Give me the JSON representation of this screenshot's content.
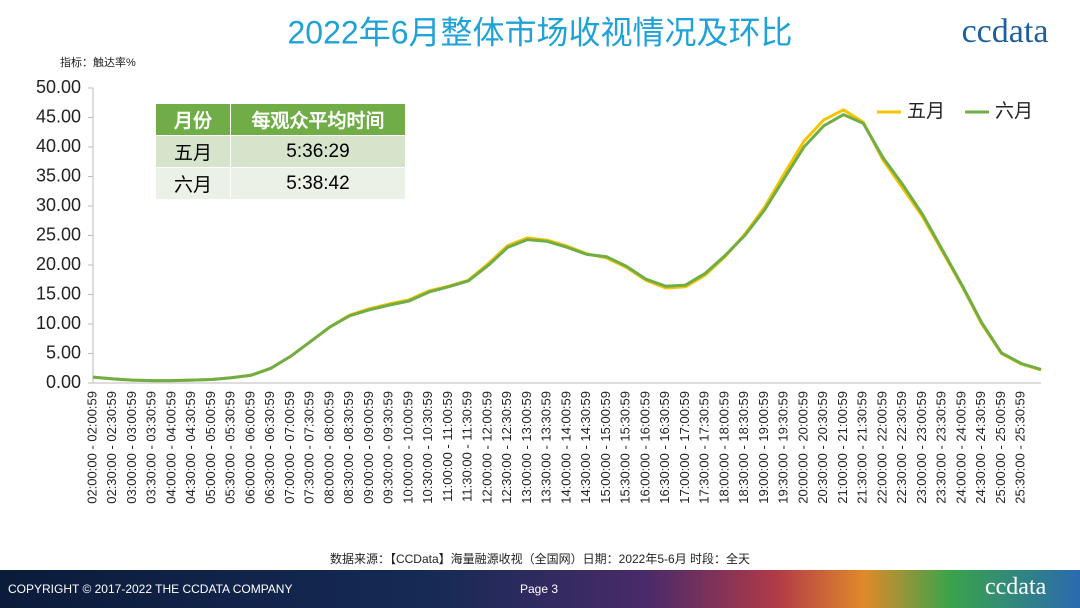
{
  "header": {
    "logo": "ccdata"
  },
  "chart_data": {
    "type": "line",
    "title": "2022年6月整体市场收视情况及环比",
    "y_label": "指标：触达率%",
    "categories": [
      "02:00:00 - 02:00:59",
      "02:30:00 - 02:30:59",
      "03:00:00 - 03:00:59",
      "03:30:00 - 03:30:59",
      "04:00:00 - 04:00:59",
      "04:30:00 - 04:30:59",
      "05:00:00 - 05:00:59",
      "05:30:00 - 05:30:59",
      "06:00:00 - 06:00:59",
      "06:30:00 - 06:30:59",
      "07:00:00 - 07:00:59",
      "07:30:00 - 07:30:59",
      "08:00:00 - 08:00:59",
      "08:30:00 - 08:30:59",
      "09:00:00 - 09:00:59",
      "09:30:00 - 09:30:59",
      "10:00:00 - 10:00:59",
      "10:30:00 - 10:30:59",
      "11:00:00 - 11:00:59",
      "11:30:00 - 11:30:59",
      "12:00:00 - 12:00:59",
      "12:30:00 - 12:30:59",
      "13:00:00 - 13:00:59",
      "13:30:00 - 13:30:59",
      "14:00:00 - 14:00:59",
      "14:30:00 - 14:30:59",
      "15:00:00 - 15:00:59",
      "15:30:00 - 15:30:59",
      "16:00:00 - 16:00:59",
      "16:30:00 - 16:30:59",
      "17:00:00 - 17:00:59",
      "17:30:00 - 17:30:59",
      "18:00:00 - 18:00:59",
      "18:30:00 - 18:30:59",
      "19:00:00 - 19:00:59",
      "19:30:00 - 19:30:59",
      "20:00:00 - 20:00:59",
      "20:30:00 - 20:30:59",
      "21:00:00 - 21:00:59",
      "21:30:00 - 21:30:59",
      "22:00:00 - 22:00:59",
      "22:30:00 - 22:30:59",
      "23:00:00 - 23:00:59",
      "23:30:00 - 23:30:59",
      "24:00:00 - 24:00:59",
      "24:30:00 - 24:30:59",
      "25:00:00 - 25:00:59",
      "25:30:00 - 25:30:59",
      null
    ],
    "series": [
      {
        "name": "五月",
        "color": "#f5c400",
        "values": [
          1.0,
          0.7,
          0.5,
          0.4,
          0.4,
          0.5,
          0.6,
          0.9,
          1.3,
          2.5,
          4.5,
          7.0,
          9.5,
          11.5,
          12.6,
          13.4,
          14.1,
          15.6,
          16.4,
          17.4,
          20.2,
          23.3,
          24.6,
          24.2,
          23.2,
          21.9,
          21.2,
          19.6,
          17.4,
          16.1,
          16.3,
          18.3,
          21.4,
          25.2,
          29.8,
          35.5,
          41.0,
          44.6,
          46.3,
          44.2,
          37.8,
          33.0,
          28.2,
          22.3,
          16.4,
          10.0,
          5.0,
          3.2,
          2.2
        ]
      },
      {
        "name": "六月",
        "color": "#70ad47",
        "values": [
          1.0,
          0.7,
          0.5,
          0.4,
          0.4,
          0.5,
          0.6,
          0.9,
          1.3,
          2.5,
          4.5,
          7.0,
          9.5,
          11.4,
          12.4,
          13.2,
          13.9,
          15.4,
          16.3,
          17.3,
          19.9,
          23.0,
          24.3,
          24.0,
          23.0,
          21.8,
          21.4,
          19.8,
          17.6,
          16.4,
          16.6,
          18.6,
          21.6,
          25.0,
          29.3,
          34.7,
          40.0,
          43.6,
          45.5,
          44.0,
          38.2,
          33.6,
          28.6,
          22.6,
          16.6,
          10.2,
          5.1,
          3.3,
          2.3
        ]
      }
    ],
    "ylim": [
      0,
      50
    ],
    "yticks": [
      {
        "value": 0,
        "label": "0.00"
      },
      {
        "value": 5,
        "label": "5.00"
      },
      {
        "value": 10,
        "label": "10.00"
      },
      {
        "value": 15,
        "label": "15.00"
      },
      {
        "value": 20,
        "label": "20.00"
      },
      {
        "value": 25,
        "label": "25.00"
      },
      {
        "value": 30,
        "label": "30.00"
      },
      {
        "value": 35,
        "label": "35.00"
      },
      {
        "value": 40,
        "label": "40.00"
      },
      {
        "value": 45,
        "label": "45.00"
      },
      {
        "value": 50,
        "label": "50.00"
      }
    ],
    "legend": "top-right"
  },
  "table": {
    "headers": [
      "月份",
      "每观众平均时间"
    ],
    "rows": [
      [
        "五月",
        "5:36:29"
      ],
      [
        "六月",
        "5:38:42"
      ]
    ]
  },
  "source": "数据来源：【CCData】海量融源收视（全国网）日期：2022年5-6月 时段：全天",
  "footer": {
    "copyright": "COPYRIGHT © 2017-2022 THE CCDATA COMPANY",
    "page": "Page 3",
    "logo": "ccdata"
  }
}
